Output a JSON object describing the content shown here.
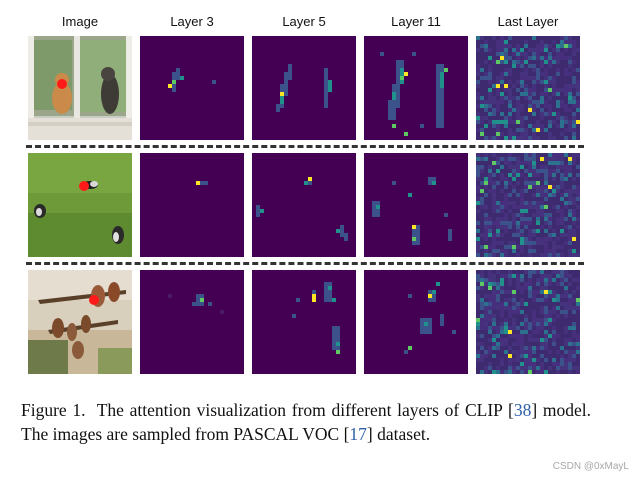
{
  "column_headers": [
    "Image",
    "Layer 3",
    "Layer 5",
    "Layer 11",
    "Last Layer"
  ],
  "rows": [
    {
      "id": "cats",
      "image_subject": "two cats at a window",
      "query_marker_color": "#ff1a1a"
    },
    {
      "id": "birds-grass",
      "image_subject": "birds on grass",
      "query_marker_color": "#ff1a1a"
    },
    {
      "id": "birds-branch",
      "image_subject": "birds on a branch painting",
      "query_marker_color": "#ff1a1a"
    }
  ],
  "heatmap_colors": {
    "low": "#440154",
    "mid1": "#3b528b",
    "mid2": "#21918c",
    "mid3": "#5ec962",
    "high": "#fde725"
  },
  "caption": {
    "figure_label": "Figure 1.",
    "text_part1": "The attention visualization from different layers of CLIP [",
    "ref1": "38",
    "text_part2": "] model.  The images are sampled from PASCAL VOC [",
    "ref2": "17",
    "text_part3": "] dataset."
  },
  "watermark": "CSDN @0xMayL"
}
